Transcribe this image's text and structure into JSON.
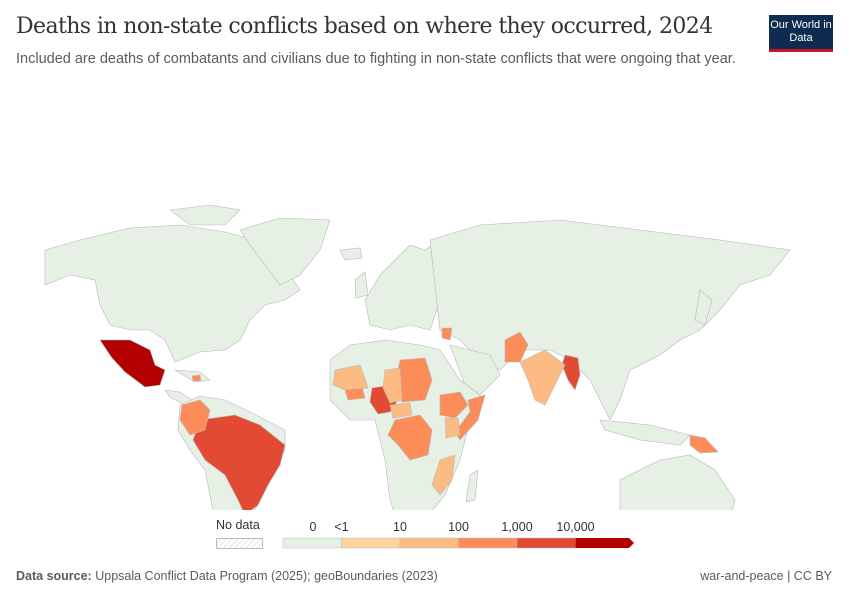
{
  "header": {
    "title": "Deaths in non-state conflicts based on where they occurred, 2024",
    "subtitle": "Included are deaths of combatants and civilians due to fighting in non-state conflicts that were ongoing that year.",
    "logo": "Our World in Data"
  },
  "legend": {
    "no_data_label": "No data",
    "bins": [
      {
        "label": "0",
        "color": "#e6f0e5"
      },
      {
        "label": "<1",
        "color": "#fdd49e"
      },
      {
        "label": "10",
        "color": "#fdbb84"
      },
      {
        "label": "100",
        "color": "#fc8d59"
      },
      {
        "label": "1,000",
        "color": "#e34a33"
      },
      {
        "label": "10,000",
        "color": "#b30000"
      }
    ]
  },
  "map": {
    "base_color": "#e6f0e5",
    "highlighted": [
      {
        "country": "Mexico",
        "color": "#b30000"
      },
      {
        "country": "Brazil",
        "color": "#e34a33"
      },
      {
        "country": "Nigeria",
        "color": "#e34a33"
      },
      {
        "country": "Myanmar",
        "color": "#e34a33"
      },
      {
        "country": "Colombia",
        "color": "#fc8d59"
      },
      {
        "country": "Haiti",
        "color": "#fc8d59"
      },
      {
        "country": "Burkina Faso",
        "color": "#fc8d59"
      },
      {
        "country": "Sudan",
        "color": "#fc8d59"
      },
      {
        "country": "Ethiopia",
        "color": "#fc8d59"
      },
      {
        "country": "Somalia",
        "color": "#fc8d59"
      },
      {
        "country": "DR Congo",
        "color": "#fc8d59"
      },
      {
        "country": "Pakistan",
        "color": "#fc8d59"
      },
      {
        "country": "Syria",
        "color": "#fc8d59"
      },
      {
        "country": "Papua New Guinea",
        "color": "#fc8d59"
      },
      {
        "country": "Mali",
        "color": "#fdbb84"
      },
      {
        "country": "Chad",
        "color": "#fdbb84"
      },
      {
        "country": "Central African Republic",
        "color": "#fdbb84"
      },
      {
        "country": "Kenya",
        "color": "#fdbb84"
      },
      {
        "country": "India",
        "color": "#fdbb84"
      },
      {
        "country": "Mozambique",
        "color": "#fdbb84"
      }
    ]
  },
  "footer": {
    "source_label": "Data source:",
    "source_text": "Uppsala Conflict Data Program (2025); geoBoundaries (2023)",
    "license": "war-and-peace | CC BY"
  }
}
